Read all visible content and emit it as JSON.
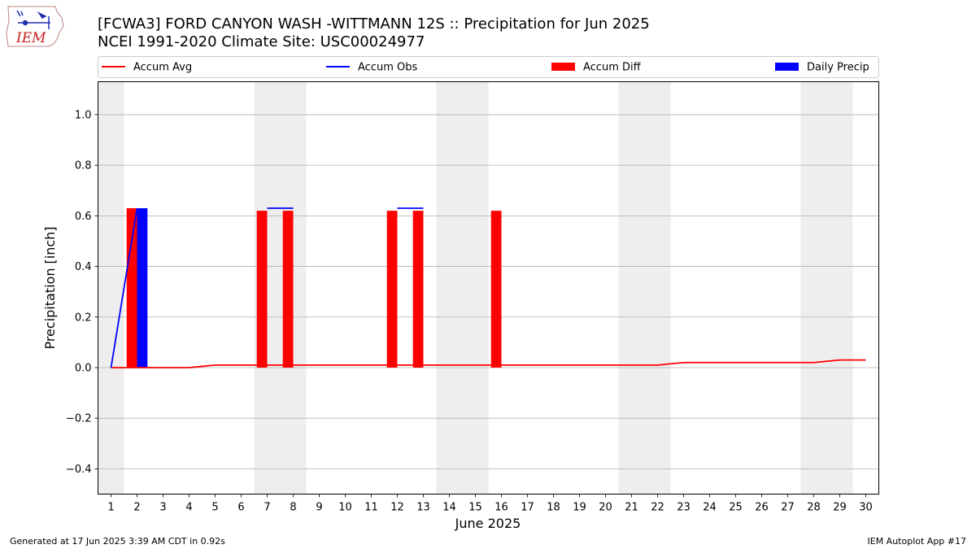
{
  "title_line1": "[FCWA3] FORD CANYON WASH -WITTMANN 12S :: Precipitation for Jun 2025",
  "title_line2": "NCEI 1991-2020 Climate Site: USC00024977",
  "logo_text": "IEM",
  "footer": {
    "left": "Generated at 17 Jun 2025 3:39 AM CDT in 0.92s",
    "right": "IEM Autoplot App #17"
  },
  "colors": {
    "avg": "#ff0000",
    "obs": "#0000ff",
    "diff": "#ff0000",
    "daily": "#0000ff",
    "weekend": "#eeeeee",
    "grid": "#b0b0b0"
  },
  "chart_data": {
    "type": "bar",
    "title": "[FCWA3] FORD CANYON WASH -WITTMANN 12S :: Precipitation for Jun 2025",
    "xlabel": "June 2025",
    "ylabel": "Precipitation [inch]",
    "xlim": [
      0.5,
      30.5
    ],
    "ylim": [
      -0.5,
      1.13
    ],
    "yticks": [
      -0.4,
      -0.2,
      0.0,
      0.2,
      0.4,
      0.6,
      0.8,
      1.0
    ],
    "ytick_labels": [
      "−0.4",
      "−0.2",
      "0.0",
      "0.2",
      "0.4",
      "0.6",
      "0.8",
      "1.0"
    ],
    "x": [
      1,
      2,
      3,
      4,
      5,
      6,
      7,
      8,
      9,
      10,
      11,
      12,
      13,
      14,
      15,
      16,
      17,
      18,
      19,
      20,
      21,
      22,
      23,
      24,
      25,
      26,
      27,
      28,
      29,
      30
    ],
    "xtick_labels": [
      "1",
      "2",
      "3",
      "4",
      "5",
      "6",
      "7",
      "8",
      "9",
      "10",
      "11",
      "12",
      "13",
      "14",
      "15",
      "16",
      "17",
      "18",
      "19",
      "20",
      "21",
      "22",
      "23",
      "24",
      "25",
      "26",
      "27",
      "28",
      "29",
      "30"
    ],
    "weekend_days": [
      1,
      7,
      8,
      14,
      15,
      21,
      22,
      28,
      29
    ],
    "grid": true,
    "legend": {
      "placement": "top",
      "entries": [
        {
          "label": "Accum Avg",
          "kind": "line",
          "color_key": "avg"
        },
        {
          "label": "Accum Obs",
          "kind": "line",
          "color_key": "obs"
        },
        {
          "label": "Accum Diff",
          "kind": "bar",
          "color_key": "diff"
        },
        {
          "label": "Daily Precip",
          "kind": "bar",
          "color_key": "daily"
        }
      ]
    },
    "series": [
      {
        "name": "Accum Avg",
        "kind": "line",
        "x": [
          1,
          2,
          3,
          4,
          5,
          6,
          7,
          8,
          9,
          10,
          11,
          12,
          13,
          14,
          15,
          16,
          17,
          18,
          19,
          20,
          21,
          22,
          23,
          24,
          25,
          26,
          27,
          28,
          29,
          30
        ],
        "values": [
          0.0,
          0.0,
          0.0,
          0.0,
          0.01,
          0.01,
          0.01,
          0.01,
          0.01,
          0.01,
          0.01,
          0.01,
          0.01,
          0.01,
          0.01,
          0.01,
          0.01,
          0.01,
          0.01,
          0.01,
          0.01,
          0.01,
          0.02,
          0.02,
          0.02,
          0.02,
          0.02,
          0.02,
          0.03,
          0.03
        ]
      },
      {
        "name": "Accum Obs",
        "kind": "line",
        "segments": [
          {
            "x": [
              1,
              2
            ],
            "values": [
              0.0,
              0.63
            ]
          },
          {
            "x": [
              7,
              8
            ],
            "values": [
              0.63,
              0.63
            ]
          },
          {
            "x": [
              12,
              13
            ],
            "values": [
              0.63,
              0.63
            ]
          }
        ]
      },
      {
        "name": "Accum Diff",
        "kind": "bar",
        "x": [
          2,
          7,
          8,
          12,
          13,
          16
        ],
        "values": [
          0.63,
          0.62,
          0.62,
          0.62,
          0.62,
          0.62
        ]
      },
      {
        "name": "Daily Precip",
        "kind": "bar",
        "x": [
          2
        ],
        "values": [
          0.63
        ]
      }
    ]
  }
}
